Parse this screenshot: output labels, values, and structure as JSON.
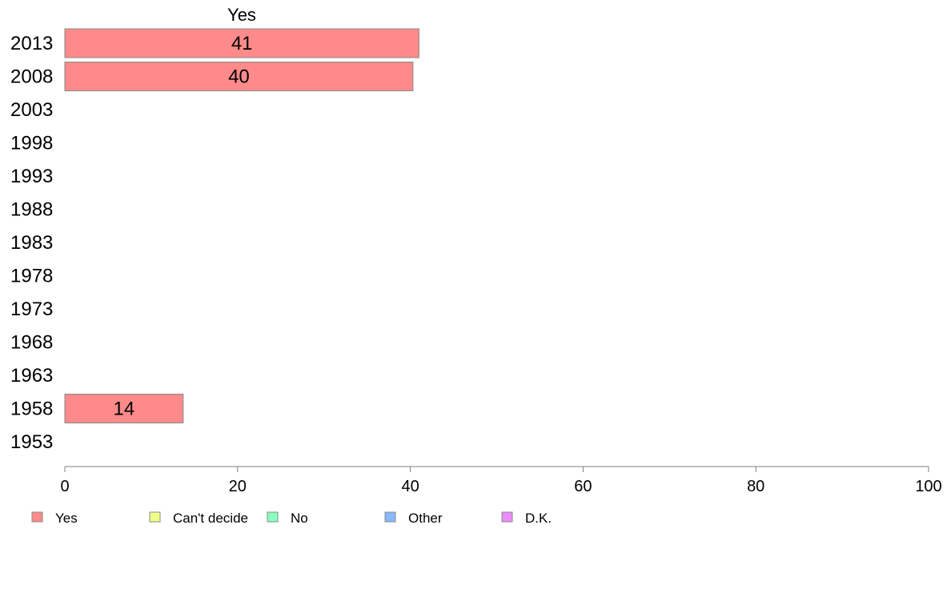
{
  "chart_data": {
    "type": "bar",
    "orientation": "horizontal",
    "stacked": true,
    "title": "",
    "column_title": "Yes",
    "categories": [
      "2013",
      "2008",
      "2003",
      "1998",
      "1993",
      "1988",
      "1983",
      "1978",
      "1973",
      "1968",
      "1963",
      "1958",
      "1953"
    ],
    "series": [
      {
        "name": "Yes",
        "color": "#ff8a8a",
        "values": [
          41,
          40.3,
          null,
          null,
          null,
          null,
          null,
          null,
          null,
          null,
          null,
          13.7,
          null
        ],
        "labels": [
          "41",
          "40",
          "",
          "",
          "",
          "",
          "",
          "",
          "",
          "",
          "",
          "14",
          ""
        ]
      },
      {
        "name": "Can't decide",
        "color": "#eeff8a",
        "values": [
          null,
          null,
          null,
          null,
          null,
          null,
          null,
          null,
          null,
          null,
          null,
          null,
          null
        ]
      },
      {
        "name": "No",
        "color": "#8affbe",
        "values": [
          null,
          null,
          null,
          null,
          null,
          null,
          null,
          null,
          null,
          null,
          null,
          null,
          null
        ]
      },
      {
        "name": "Other",
        "color": "#8ab8ff",
        "values": [
          null,
          null,
          null,
          null,
          null,
          null,
          null,
          null,
          null,
          null,
          null,
          null,
          null
        ]
      },
      {
        "name": "D.K.",
        "color": "#ee8aff",
        "values": [
          null,
          null,
          null,
          null,
          null,
          null,
          null,
          null,
          null,
          null,
          null,
          null,
          null
        ]
      }
    ],
    "xlim": [
      0,
      100
    ],
    "xticks": [
      0,
      20,
      40,
      60,
      80,
      100
    ],
    "xlabel": "",
    "ylabel": "",
    "grid": false,
    "legend_position": "bottom"
  }
}
